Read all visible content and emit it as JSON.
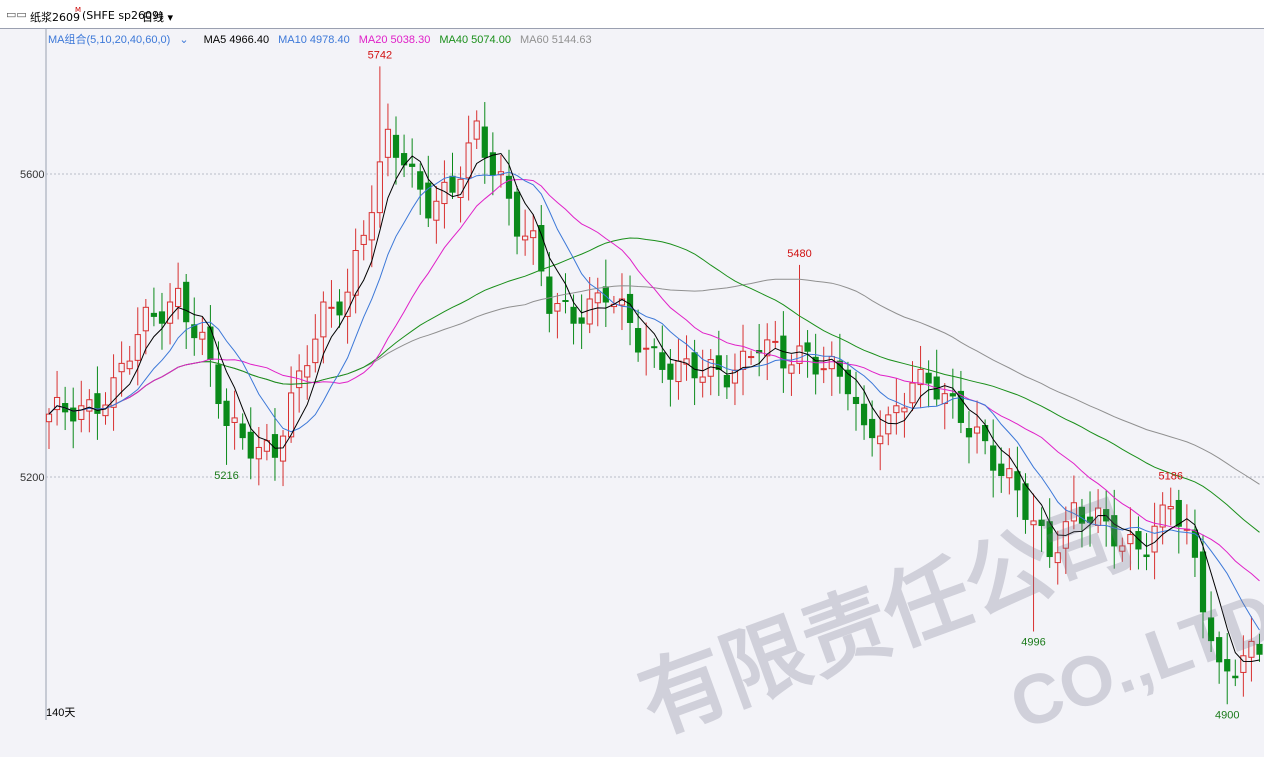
{
  "header": {
    "icon": "window-split-icon",
    "instrument": "纸浆2609",
    "superscript": "M",
    "code": "(SHFE sp2609)",
    "period": "日线",
    "period_icon": "chevron-down-icon"
  },
  "ma_legend": {
    "group": "MA组合(5,10,20,40,60,0)",
    "items": [
      {
        "label": "MA5 4966.40",
        "color": "#000000"
      },
      {
        "label": "MA10 4978.40",
        "color": "#3c78d8"
      },
      {
        "label": "MA20 5038.30",
        "color": "#e020c8"
      },
      {
        "label": "MA40 5074.00",
        "color": "#1a8f1a"
      },
      {
        "label": "MA60 5144.63",
        "color": "#909090"
      }
    ]
  },
  "footer": {
    "days": "140天"
  },
  "watermark": {
    "line1": "有限责任公司",
    "line2": "CO.,LTD"
  },
  "chart_data": {
    "type": "candlestick",
    "y_ticks": [
      5200,
      5600
    ],
    "grid": "dashed horizontal at ticks",
    "colors": {
      "up": "#d83030",
      "down": "#0a8a1a",
      "ma5": "#000000",
      "ma10": "#3c78d8",
      "ma20": "#e020c8",
      "ma40": "#1a8f1a",
      "ma60": "#909090"
    },
    "annotations": [
      {
        "text": "5742",
        "index": 41,
        "value": 5742,
        "position": "above",
        "color": "#d01010"
      },
      {
        "text": "5216",
        "index": 22,
        "value": 5216,
        "position": "below",
        "color": "#1a7a1a"
      },
      {
        "text": "5480",
        "index": 93,
        "value": 5480,
        "position": "above",
        "color": "#d01010"
      },
      {
        "text": "4996",
        "index": 122,
        "value": 4996,
        "position": "below",
        "color": "#1a7a1a"
      },
      {
        "text": "5186",
        "index": 139,
        "value": 5186,
        "position": "above",
        "color": "#d01010"
      },
      {
        "text": "4900",
        "index": 146,
        "value": 4900,
        "position": "below",
        "color": "#1a7a1a"
      }
    ],
    "anchors": [
      [
        0,
        5275
      ],
      [
        4,
        5290
      ],
      [
        8,
        5320
      ],
      [
        12,
        5400
      ],
      [
        16,
        5445
      ],
      [
        19,
        5375
      ],
      [
        22,
        5265
      ],
      [
        25,
        5250
      ],
      [
        28,
        5235
      ],
      [
        31,
        5320
      ],
      [
        34,
        5420
      ],
      [
        37,
        5450
      ],
      [
        40,
        5555
      ],
      [
        42,
        5640
      ],
      [
        44,
        5625
      ],
      [
        47,
        5565
      ],
      [
        50,
        5570
      ],
      [
        53,
        5655
      ],
      [
        56,
        5600
      ],
      [
        58,
        5535
      ],
      [
        60,
        5500
      ],
      [
        62,
        5425
      ],
      [
        65,
        5420
      ],
      [
        69,
        5440
      ],
      [
        73,
        5380
      ],
      [
        77,
        5350
      ],
      [
        81,
        5330
      ],
      [
        84,
        5340
      ],
      [
        88,
        5380
      ],
      [
        91,
        5345
      ],
      [
        94,
        5365
      ],
      [
        97,
        5350
      ],
      [
        99,
        5320
      ],
      [
        101,
        5245
      ],
      [
        104,
        5275
      ],
      [
        107,
        5335
      ],
      [
        110,
        5310
      ],
      [
        112,
        5285
      ],
      [
        115,
        5265
      ],
      [
        118,
        5210
      ],
      [
        121,
        5150
      ],
      [
        124,
        5105
      ],
      [
        127,
        5160
      ],
      [
        130,
        5135
      ],
      [
        133,
        5110
      ],
      [
        136,
        5120
      ],
      [
        139,
        5165
      ],
      [
        142,
        5080
      ],
      [
        145,
        4950
      ],
      [
        148,
        4960
      ],
      [
        150,
        4965
      ]
    ],
    "candles": [],
    "ma5": [],
    "ma10": [],
    "ma20": [],
    "ma40": [],
    "ma60": []
  }
}
